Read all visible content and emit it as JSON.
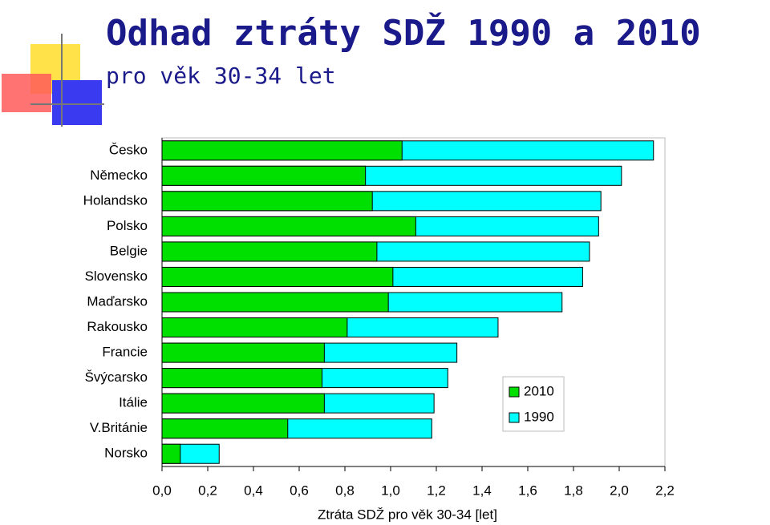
{
  "chart_data": {
    "type": "bar",
    "orientation": "horizontal",
    "overlap": true,
    "title": "Odhad ztráty SDŽ 1990 a 2010",
    "subtitle": "pro věk 30-34 let",
    "x_label": "Ztráta SDŽ pro věk 30-34 [let]",
    "categories": [
      "Česko",
      "Německo",
      "Holandsko",
      "Polsko",
      "Belgie",
      "Slovensko",
      "Maďarsko",
      "Rakousko",
      "Francie",
      "Švýcarsko",
      "Itálie",
      "V.Británie",
      "Norsko"
    ],
    "series": [
      {
        "name": "1990",
        "color": "#00ffff",
        "values": [
          2.15,
          2.01,
          1.92,
          1.91,
          1.87,
          1.84,
          1.75,
          1.47,
          1.29,
          1.25,
          1.19,
          1.18,
          0.25
        ]
      },
      {
        "name": "2010",
        "color": "#00e000",
        "values": [
          1.05,
          0.89,
          0.92,
          1.11,
          0.94,
          1.01,
          0.99,
          0.81,
          0.71,
          0.7,
          0.71,
          0.55,
          0.08
        ]
      }
    ],
    "xlim": [
      0,
      2.2
    ],
    "xticks": [
      {
        "value": 0,
        "label": "0,0"
      },
      {
        "value": 0.2,
        "label": "0,2"
      },
      {
        "value": 0.4,
        "label": "0,4"
      },
      {
        "value": 0.6,
        "label": "0,6"
      },
      {
        "value": 0.8,
        "label": "0,8"
      },
      {
        "value": 1.0,
        "label": "1,0"
      },
      {
        "value": 1.2,
        "label": "1,2"
      },
      {
        "value": 1.4,
        "label": "1,4"
      },
      {
        "value": 1.6,
        "label": "1,6"
      },
      {
        "value": 1.8,
        "label": "1,8"
      },
      {
        "value": 2.0,
        "label": "2,0"
      },
      {
        "value": 2.2,
        "label": "2,2"
      }
    ],
    "legend": "inside-right",
    "grid": false
  }
}
